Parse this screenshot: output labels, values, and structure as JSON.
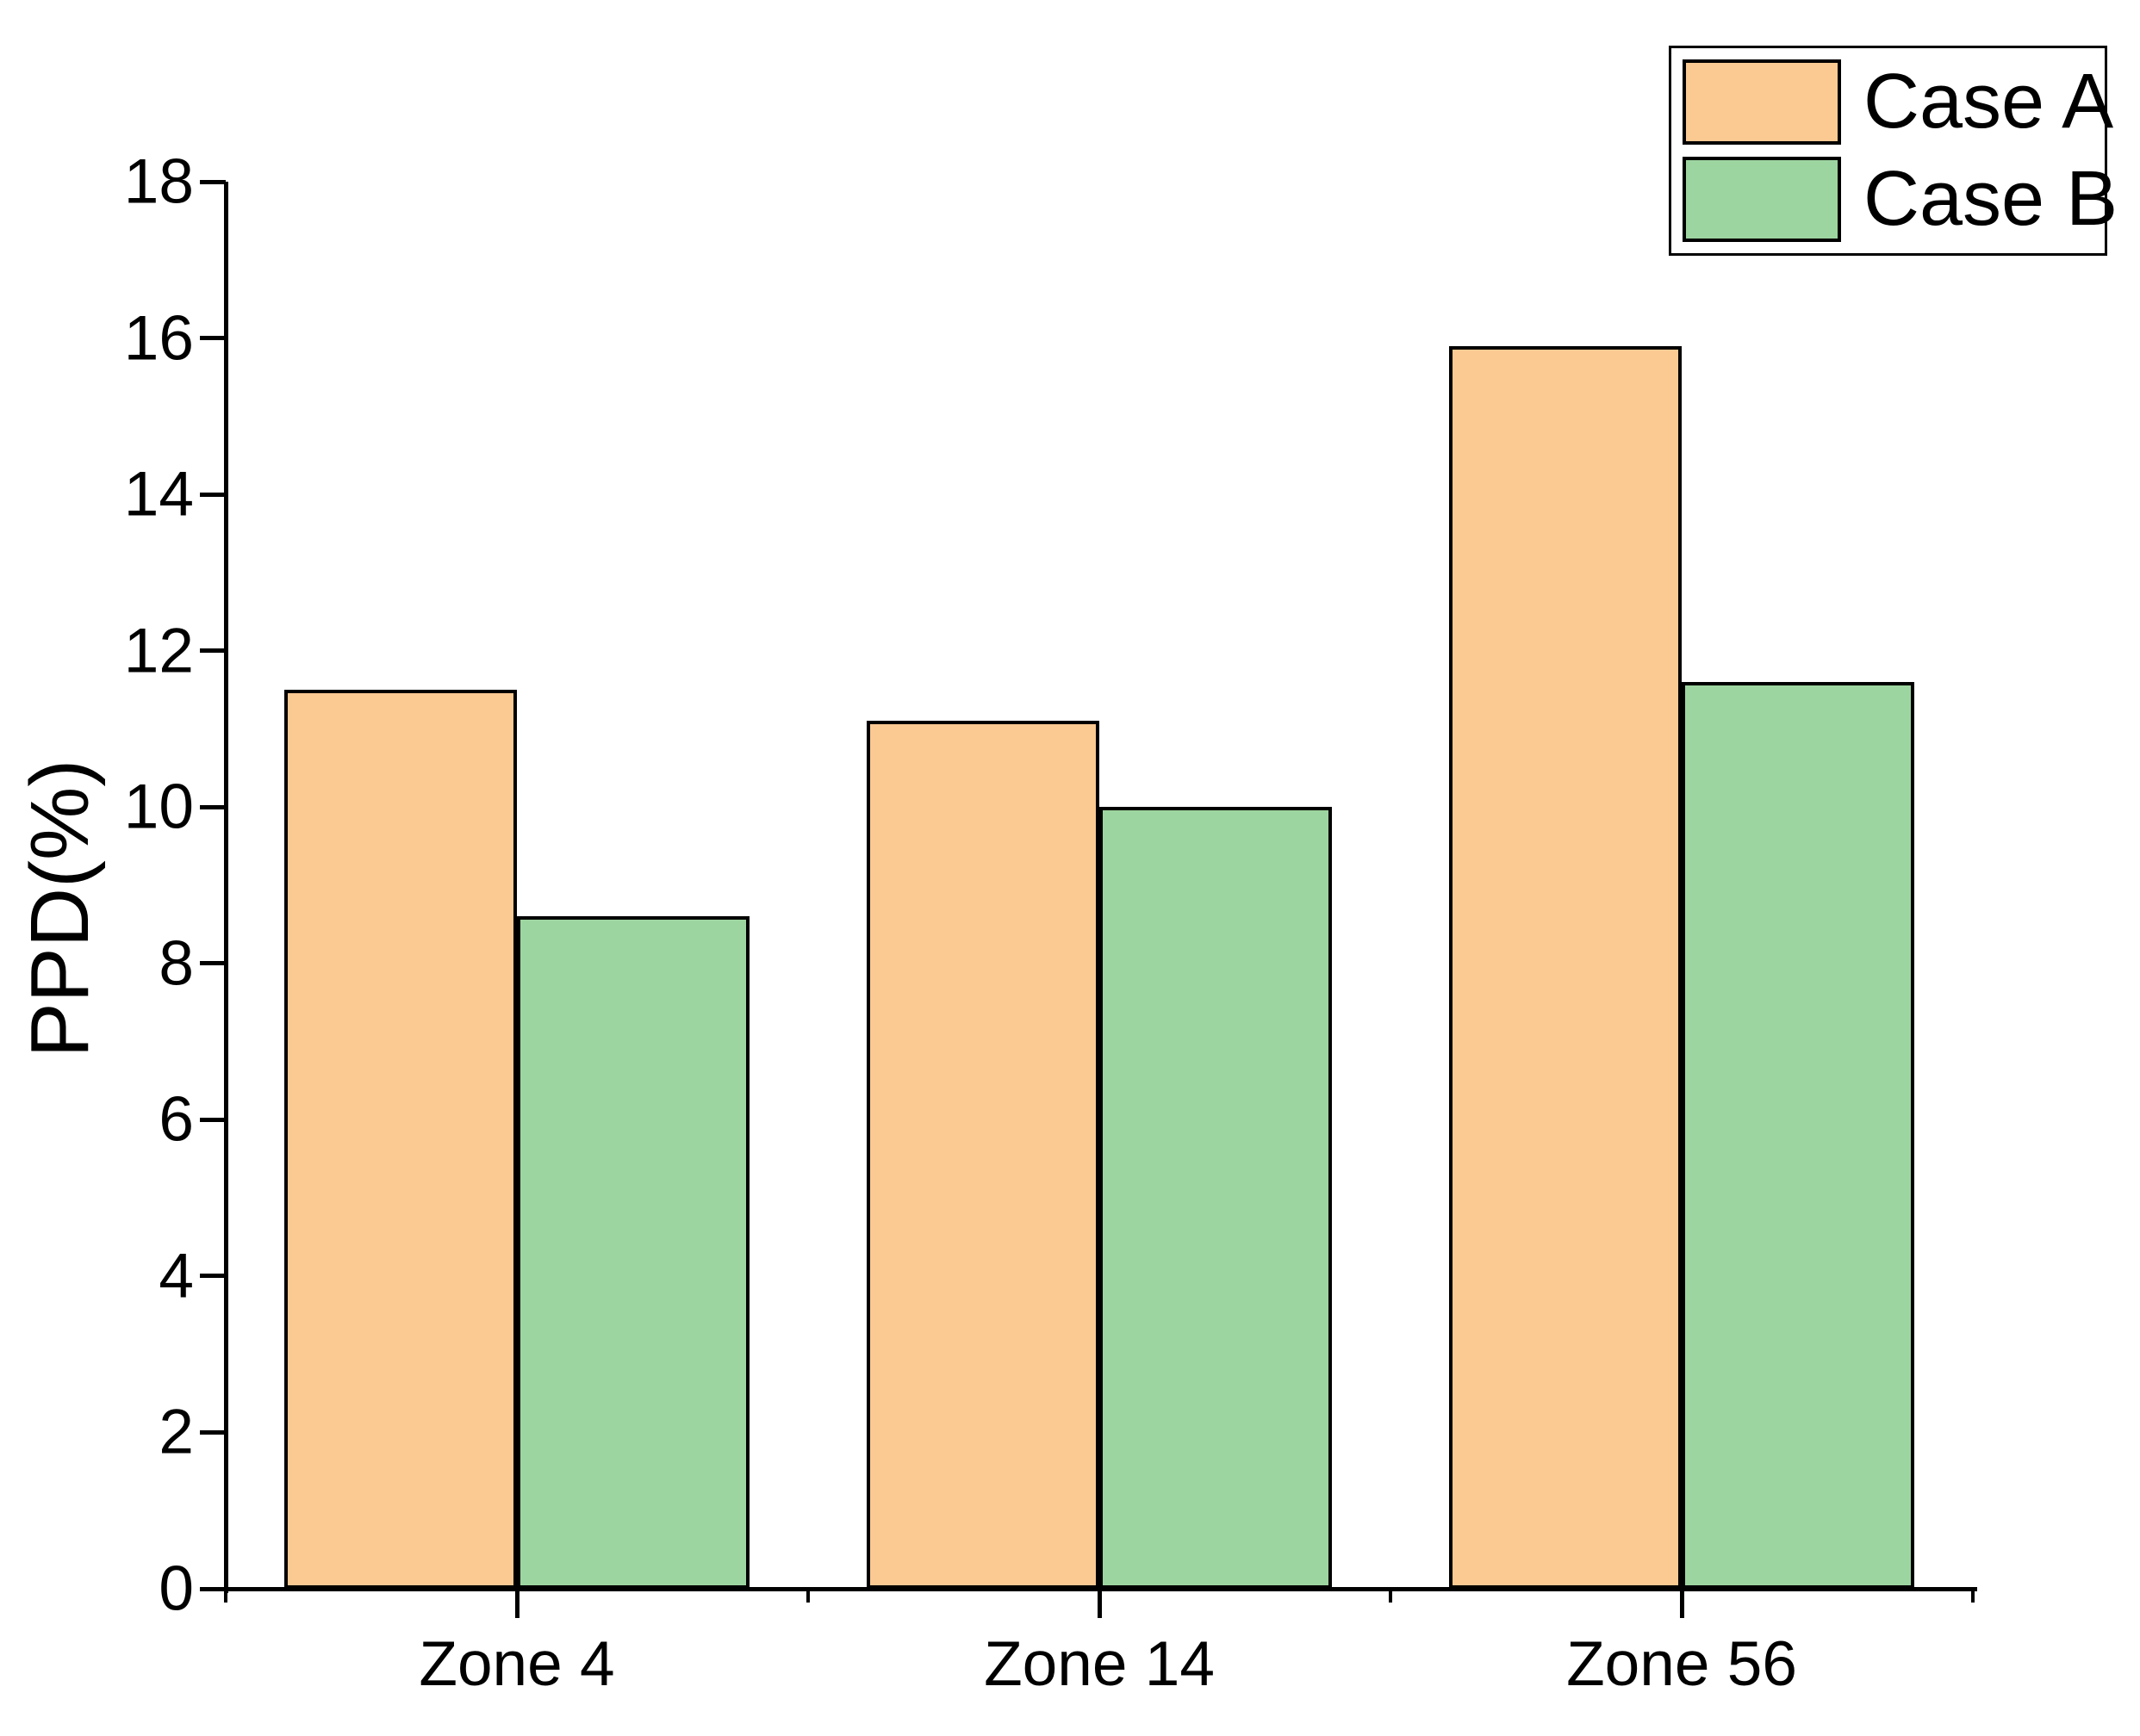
{
  "chart_data": {
    "type": "bar",
    "categories": [
      "Zone 4",
      "Zone 14",
      "Zone 56"
    ],
    "series": [
      {
        "name": "Case A",
        "color": "#FBC992",
        "values": [
          11.5,
          11.1,
          15.9
        ]
      },
      {
        "name": "Case B",
        "color": "#9DD5A0",
        "values": [
          8.6,
          10.0,
          11.6
        ]
      }
    ],
    "title": "",
    "xlabel": "",
    "ylabel": "PPD(%)",
    "ylim": [
      0,
      18
    ],
    "yticks": [
      0,
      2,
      4,
      6,
      8,
      10,
      12,
      14,
      16,
      18
    ],
    "grid": false,
    "legend_position": "top-right",
    "bar_edge_color": "#000000",
    "axis_color": "#000000",
    "background_color": "#ffffff"
  }
}
